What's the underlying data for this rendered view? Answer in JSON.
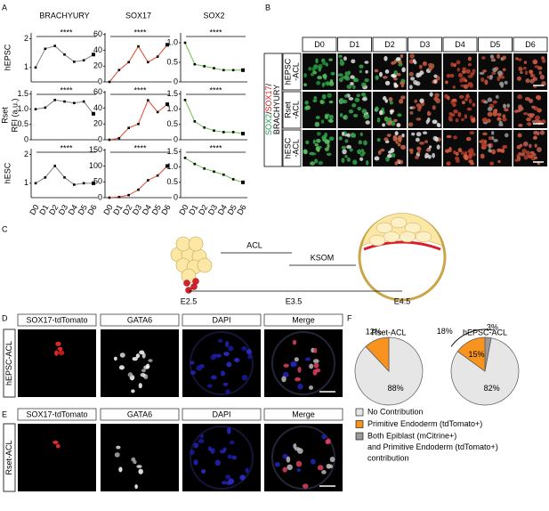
{
  "panel_labels": [
    "A",
    "B",
    "C",
    "D",
    "E",
    "F"
  ],
  "panel_a": {
    "columns": [
      "BRACHYURY",
      "SOX17",
      "SOX2"
    ],
    "rows": [
      "hEPSC",
      "Rset",
      "hESC"
    ],
    "y_axis_label": "RFI (a.u.)",
    "categories": [
      "D0",
      "D1",
      "D2",
      "D3",
      "D4",
      "D5",
      "D6"
    ],
    "charts": [
      {
        "type": "line",
        "color": "#808080",
        "values": [
          1.0,
          1.65,
          1.75,
          1.45,
          1.2,
          1.25,
          1.45
        ],
        "ylim": [
          0.5,
          2.2
        ],
        "yticks": [
          1,
          2
        ],
        "significance": "****"
      },
      {
        "type": "line",
        "color": "#e8452c",
        "values": [
          0,
          15,
          25,
          45,
          25,
          32,
          47
        ],
        "ylim": [
          0,
          62
        ],
        "yticks": [
          0,
          20,
          40,
          60
        ],
        "significance": "****"
      },
      {
        "type": "line",
        "color": "#6cc04a",
        "values": [
          1.0,
          0.45,
          0.4,
          0.35,
          0.3,
          0.3,
          0.3
        ],
        "ylim": [
          0,
          1.25
        ],
        "yticks": [
          0,
          0.5,
          {
            "value": 1,
            "label": "1.0"
          }
        ],
        "significance": "****"
      },
      {
        "type": "line",
        "color": "#808080",
        "values": [
          1.0,
          1.05,
          1.3,
          1.25,
          1.2,
          1.25,
          0.85
        ],
        "ylim": [
          0,
          1.6
        ],
        "yticks": [
          0,
          0.5,
          {
            "value": 1,
            "label": "1.0"
          },
          1.5
        ],
        "significance": "****"
      },
      {
        "type": "line",
        "color": "#e8452c",
        "values": [
          0,
          2,
          15,
          20,
          50,
          35,
          45
        ],
        "ylim": [
          0,
          62
        ],
        "yticks": [
          0,
          20,
          40,
          60
        ],
        "significance": "****"
      },
      {
        "type": "line",
        "color": "#6cc04a",
        "values": [
          1.3,
          0.6,
          0.4,
          0.3,
          0.25,
          0.25,
          0.2
        ],
        "ylim": [
          0,
          1.6
        ],
        "yticks": [
          0,
          0.5,
          {
            "value": 1,
            "label": "1.0"
          },
          1.5
        ],
        "significance": "****"
      },
      {
        "type": "line",
        "color": "#808080",
        "values": [
          1.0,
          1.2,
          1.6,
          1.2,
          0.95,
          1.0,
          1.0
        ],
        "ylim": [
          0.5,
          2.2
        ],
        "yticks": [
          1,
          2
        ],
        "significance": "****"
      },
      {
        "type": "line",
        "color": "#e8452c",
        "values": [
          0,
          2,
          8,
          25,
          55,
          70,
          100
        ],
        "ylim": [
          0,
          155
        ],
        "yticks": [
          0,
          50,
          100,
          150
        ],
        "significance": "****"
      },
      {
        "type": "line",
        "color": "#6cc04a",
        "values": [
          1.3,
          1.1,
          0.95,
          0.85,
          0.75,
          0.6,
          0.5
        ],
        "ylim": [
          0,
          1.6
        ],
        "yticks": [
          0,
          0.5,
          {
            "value": 1,
            "label": "1.0"
          },
          1.5
        ],
        "significance": "****"
      }
    ]
  },
  "panel_b": {
    "columns": [
      "D0",
      "D1",
      "D2",
      "D3",
      "D4",
      "D5",
      "D6"
    ],
    "rows": [
      [
        "hEPSC",
        "-ACL"
      ],
      [
        "Rset",
        "-ACL"
      ],
      [
        "hESC",
        "-ACL"
      ]
    ],
    "stain_label": [
      [
        {
          "text": "SOX2",
          "color": "#1aa34a"
        },
        {
          "text": "/",
          "color": "#000000"
        },
        {
          "text": "SOX17",
          "color": "#e02020"
        },
        {
          "text": "/",
          "color": "#000000"
        }
      ],
      [
        {
          "text": "BRACHYURY",
          "color": "#000000"
        }
      ]
    ]
  },
  "panel_c": {
    "steps": [
      "ACL",
      "KSOM"
    ],
    "stages": [
      "E2.5",
      "E3.5",
      "E4.5"
    ]
  },
  "panel_d": {
    "columns": [
      "SOX17-tdTomato",
      "GATA6",
      "DAPI",
      "Merge"
    ],
    "row_label": "hEPSC-ACL"
  },
  "panel_e": {
    "columns": [
      "SOX17-tdTomato",
      "GATA6",
      "DAPI",
      "Merge"
    ],
    "row_label": "Rset-ACL"
  },
  "panel_f": {
    "charts": [
      {
        "type": "pie",
        "title": "Rset-ACL",
        "values": [
          88,
          12
        ],
        "value_labels": [
          "88%",
          "12%"
        ],
        "colors": [
          "#e6e6e6",
          "#f7931e"
        ]
      },
      {
        "type": "pie",
        "title": "hEPSC-ACL",
        "values": [
          82,
          15,
          3
        ],
        "value_labels": [
          "82%",
          "15%",
          "3%"
        ],
        "colors": [
          "#e6e6e6",
          "#f7931e",
          "#9a9a9a"
        ],
        "bracket": {
          "value": 18,
          "label": "18%"
        }
      }
    ],
    "legend": [
      {
        "color": "#e6e6e6",
        "lines": [
          "No Contribution"
        ]
      },
      {
        "color": "#f7931e",
        "lines": [
          "Primitive Endoderm (tdTomato+)"
        ]
      },
      {
        "color": "#9a9a9a",
        "lines": [
          "Both Epiblast (mCitrine+)",
          "and Primitive Endoderm (tdTomato+)",
          "contribution"
        ]
      }
    ]
  }
}
